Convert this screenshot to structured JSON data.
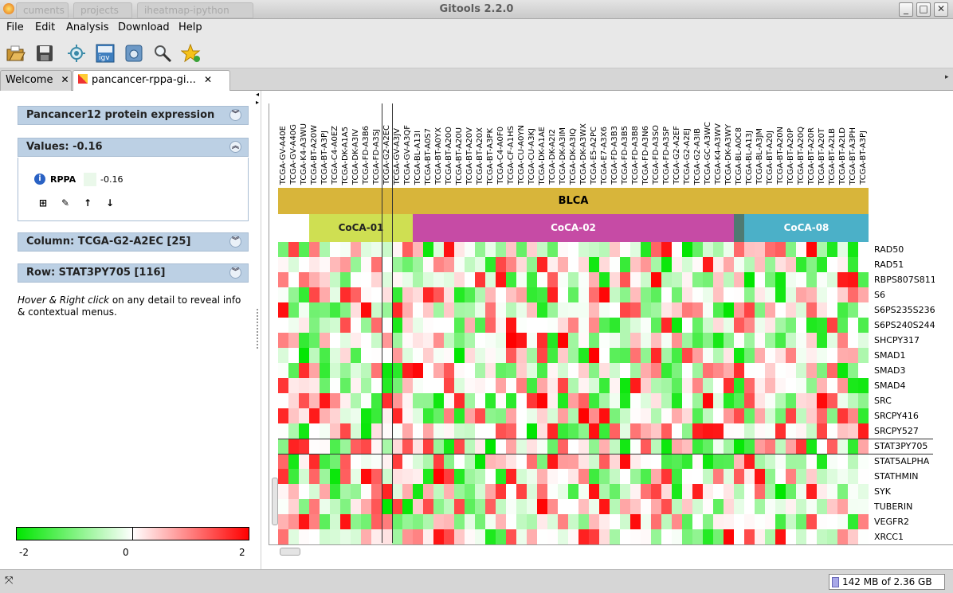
{
  "window": {
    "title": "Gitools 2.2.0",
    "ghost_tabs": [
      "cuments",
      "projects",
      "iheatmap-ipython"
    ]
  },
  "menu": [
    "File",
    "Edit",
    "Analysis",
    "Download",
    "Help"
  ],
  "toolbar": [
    "open-folder-icon",
    "save-icon",
    "gear-sun-icon",
    "igv-icon",
    "camera-icon",
    "magnifier-icon",
    "star-add-icon"
  ],
  "tabs": [
    {
      "label": "Welcome"
    },
    {
      "label": "pancancer-rppa-gi..."
    }
  ],
  "details": {
    "panel_title": "Pancancer12 protein expression",
    "values_header": "Values: -0.16",
    "value_row": {
      "label": "RPPA",
      "value": "-0.16"
    },
    "column_header": "Column: TCGA-G2-A2EC [25]",
    "row_header": "Row: STAT3PY705 [116]",
    "hint_part1": "Hover & Right click",
    "hint_part2": " on any detail to reveal info & contextual menus."
  },
  "colorscale": {
    "ticks": [
      "-2",
      "0",
      "2"
    ],
    "colors": {
      "low": "#00e600",
      "mid": "#ffffff",
      "high": "#ff0000"
    }
  },
  "heatmap": {
    "columns": [
      "TCGA-GV-A40E",
      "TCGA-GV-A40G",
      "TCGA-K4-A3WU",
      "TCGA-BT-A20W",
      "TCGA-BT-A3PJ",
      "TCGA-C4-A0EZ",
      "TCGA-DK-A1A5",
      "TCGA-DK-A3IV",
      "TCGA-FD-A3B6",
      "TCGA-FD-A3SJ",
      "TCGA-G2-A2EC",
      "TCGA-GV-A3JV",
      "TCGA-GV-A3QF",
      "TCGA-BL-A13I",
      "TCGA-BT-A0S7",
      "TCGA-BT-A0YX",
      "TCGA-BT-A20O",
      "TCGA-BT-A20U",
      "TCGA-BT-A20V",
      "TCGA-BT-A20X",
      "TCGA-BT-A3PK",
      "TCGA-C4-A0F0",
      "TCGA-CF-A1HS",
      "TCGA-CU-A0YN",
      "TCGA-CU-A3KJ",
      "TCGA-DK-A1AE",
      "TCGA-DK-A2I2",
      "TCGA-DK-A3IM",
      "TCGA-DK-A3IQ",
      "TCGA-DK-A3WX",
      "TCGA-E5-A2PC",
      "TCGA-E7-A3X6",
      "TCGA-FD-A3B3",
      "TCGA-FD-A3B5",
      "TCGA-FD-A3B8",
      "TCGA-FD-A3N6",
      "TCGA-FD-A3SO",
      "TCGA-FD-A3SP",
      "TCGA-G2-A2EF",
      "TCGA-G2-A2EJ",
      "TCGA-G2-A3IB",
      "TCGA-GC-A3WC",
      "TCGA-K4-A3WV",
      "TCGA-DK-A3WY",
      "TCGA-BL-A0C8",
      "TCGA-BL-A13J",
      "TCGA-BL-A3JM",
      "TCGA-BT-A20J",
      "TCGA-BT-A20N",
      "TCGA-BT-A20P",
      "TCGA-BT-A20Q",
      "TCGA-BT-A20R",
      "TCGA-BT-A20T",
      "TCGA-BT-A2LB",
      "TCGA-BT-A2LD",
      "TCGA-BT-A3PH",
      "TCGA-BT-A3PJ"
    ],
    "top_group": {
      "label": "BLCA",
      "color": "#d8b53a"
    },
    "clusters": [
      {
        "label": "",
        "start": 0,
        "end": 3,
        "color": "#ffffff"
      },
      {
        "label": "CoCA-01",
        "start": 3,
        "end": 13,
        "color": "#cfdf52"
      },
      {
        "label": "CoCA-02",
        "start": 13,
        "end": 44,
        "color": "#c64ba5"
      },
      {
        "label": "",
        "start": 44,
        "end": 45,
        "color": "#4f7a72"
      },
      {
        "label": "CoCA-08",
        "start": 45,
        "end": 57,
        "color": "#4bb0c8"
      }
    ],
    "rows": [
      "RAD50",
      "RAD51",
      "RBPS807S811",
      "S6",
      "S6PS235S236",
      "S6PS240S244",
      "SHCPY317",
      "SMAD1",
      "SMAD3",
      "SMAD4",
      "SRC",
      "SRCPY416",
      "SRCPY527",
      "STAT3PY705",
      "STAT5ALPHA",
      "STATHMIN",
      "SYK",
      "TUBERIN",
      "VEGFR2",
      "XRCC1"
    ],
    "selected_row": 13,
    "selected_column": 10
  },
  "status": {
    "memory": "142 MB of 2.36 GB"
  }
}
